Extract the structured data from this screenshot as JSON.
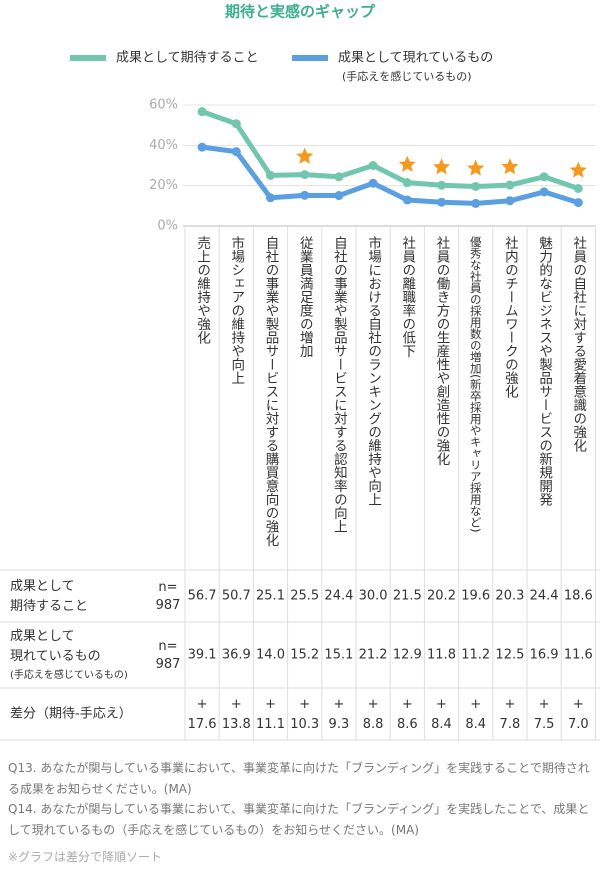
{
  "chart_data": {
    "type": "line",
    "title": "期待と実感のギャップ",
    "categories": [
      "売上の維持や強化",
      "市場シェアの維持や向上",
      "自社の事業や製品サービスに対する購買意向の強化",
      "従業員満足度の増加",
      "自社の事業や製品サービスに対する認知率の向上",
      "市場における自社のランキングの維持や向上",
      "社員の離職率の低下",
      "社員の働き方の生産性や創造性の強化",
      "優秀な社員の採用数の増加(新卒採用やキャリア採用など)",
      "社内のチームワークの強化",
      "魅力的なビジネスや製品サービスの新規開発",
      "社員の自社に対する愛着意識の強化"
    ],
    "series": [
      {
        "name": "成果として期待すること",
        "table_label": "成果として\n期待すること",
        "n": "n=\n987",
        "color": "#72c6ae",
        "values": [
          56.7,
          50.7,
          25.1,
          25.5,
          24.4,
          30.0,
          21.5,
          20.2,
          19.6,
          20.3,
          24.4,
          18.6
        ],
        "value_labels": [
          "56.7",
          "50.7",
          "25.1",
          "25.5",
          "24.4",
          "30.0",
          "21.5",
          "20.2",
          "19.6",
          "20.3",
          "24.4",
          "18.6"
        ]
      },
      {
        "name": "成果として現れているもの",
        "subname": "(手応えを感じているもの)",
        "table_label": "成果として\n現れているもの",
        "n": "n=\n987",
        "color": "#5aa0e0",
        "values": [
          39.1,
          36.9,
          14.0,
          15.2,
          15.1,
          21.2,
          12.9,
          11.8,
          11.2,
          12.5,
          16.9,
          11.6
        ],
        "value_labels": [
          "39.1",
          "36.9",
          "14.0",
          "15.2",
          "15.1",
          "21.2",
          "12.9",
          "11.8",
          "11.2",
          "12.5",
          "16.9",
          "11.6"
        ]
      }
    ],
    "difference": {
      "label": "差分（期待-手応え）",
      "values": [
        17.6,
        13.8,
        11.1,
        10.3,
        9.3,
        8.8,
        8.6,
        8.4,
        8.4,
        7.8,
        7.5,
        7.0
      ],
      "value_labels": [
        "+\n17.6",
        "+\n13.8",
        "+\n11.1",
        "+\n10.3",
        "+\n9.3",
        "+\n8.8",
        "+\n8.6",
        "+\n8.4",
        "+\n8.4",
        "+\n7.8",
        "+\n7.5",
        "+\n7.0"
      ]
    },
    "highlighted": [
      false,
      false,
      false,
      true,
      false,
      false,
      true,
      true,
      true,
      true,
      false,
      true
    ],
    "star_color": "#f39a1e",
    "ylim": [
      0,
      60
    ],
    "yticks": [
      {
        "value": 0,
        "label": "0%"
      },
      {
        "value": 20,
        "label": "20%"
      },
      {
        "value": 40,
        "label": "40%"
      },
      {
        "value": 60,
        "label": "60%"
      }
    ],
    "grid": true,
    "notes": [
      "Q13. あなたが関与している事業において、事業変革に向けた「ブランディング」を実践することで期待される成果をお知らせください。(MA)",
      "Q14. あなたが関与している事業において、事業変革に向けた「ブランディング」を実践したことで、成果として現れているもの（手応えを感じているもの）をお知らせください。(MA)",
      "※グラフは差分で降順ソート"
    ]
  }
}
